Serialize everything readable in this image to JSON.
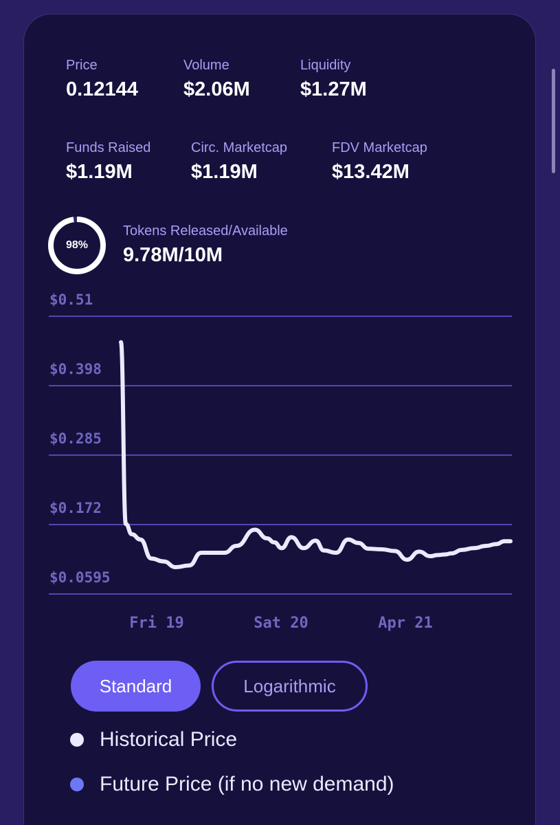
{
  "stats_row1": [
    {
      "label": "Price",
      "value": "0.12144"
    },
    {
      "label": "Volume",
      "value": "$2.06M"
    },
    {
      "label": "Liquidity",
      "value": "$1.27M"
    }
  ],
  "stats_row2": [
    {
      "label": "Funds Raised",
      "value": "$1.19M"
    },
    {
      "label": "Circ. Marketcap",
      "value": "$1.19M"
    },
    {
      "label": "FDV Marketcap",
      "value": "$13.42M"
    }
  ],
  "tokens": {
    "percent_label": "98%",
    "fraction": 0.978,
    "label": "Tokens Released/Available",
    "value": "9.78M/10M"
  },
  "colors": {
    "accent": "#6d5ef4",
    "line": "#ece9ff",
    "future": "#6d78f4"
  },
  "chart_data": {
    "type": "line",
    "y_ticks": [
      "$0.51",
      "$0.398",
      "$0.285",
      "$0.172",
      "$0.0595"
    ],
    "ylim": [
      0.0595,
      0.51
    ],
    "x_ticks": [
      "Fri 19",
      "Sat 20",
      "Apr 21"
    ],
    "series": [
      {
        "name": "Historical Price",
        "x": [
          0,
          0.012,
          0.027,
          0.048,
          0.075,
          0.105,
          0.135,
          0.168,
          0.198,
          0.22,
          0.255,
          0.285,
          0.33,
          0.36,
          0.378,
          0.396,
          0.42,
          0.45,
          0.48,
          0.5,
          0.53,
          0.56,
          0.585,
          0.61,
          0.642,
          0.675,
          0.705,
          0.735,
          0.762,
          0.78,
          0.798,
          0.815,
          0.84,
          0.87,
          0.9,
          0.925,
          0.945,
          0.96
        ],
        "values": [
          0.465,
          0.15,
          0.132,
          0.123,
          0.09,
          0.085,
          0.075,
          0.078,
          0.1,
          0.1,
          0.1,
          0.112,
          0.14,
          0.125,
          0.118,
          0.108,
          0.127,
          0.108,
          0.121,
          0.104,
          0.1,
          0.123,
          0.117,
          0.107,
          0.106,
          0.103,
          0.088,
          0.102,
          0.094,
          0.096,
          0.097,
          0.099,
          0.105,
          0.108,
          0.112,
          0.115,
          0.12,
          0.12
        ]
      }
    ],
    "grid": true
  },
  "buttons": {
    "standard": "Standard",
    "logarithmic": "Logarithmic"
  },
  "legend": [
    {
      "label": "Historical Price",
      "color": "#ece9ff"
    },
    {
      "label": "Future Price (if no new demand)",
      "color": "#6d78f4"
    }
  ]
}
